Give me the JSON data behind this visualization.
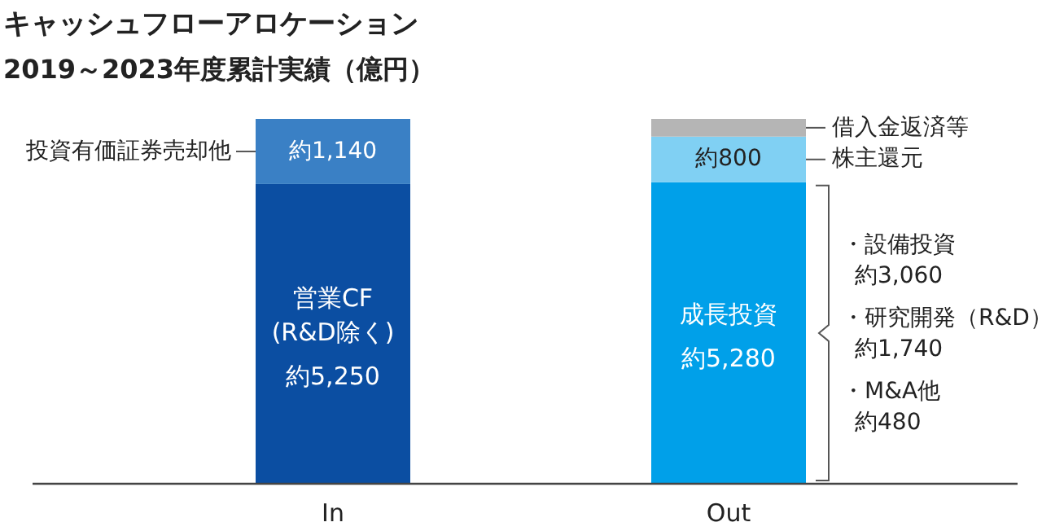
{
  "chart_data": {
    "type": "bar",
    "stacked": true,
    "title": "キャッシュフローアロケーション",
    "subtitle": "2019～2023年度累計実績（億円）",
    "categories": [
      "In",
      "Out"
    ],
    "series": [
      {
        "name": "営業CF\n(R&D除く)",
        "color": "#0b4ea2",
        "values": [
          5250,
          null
        ],
        "value_labels": [
          "約5,250",
          null
        ]
      },
      {
        "name": "成長投資",
        "color": "#00a0e9",
        "values": [
          null,
          5280
        ],
        "value_labels": [
          null,
          "約5,280"
        ]
      },
      {
        "name": "投資有価証券売却他",
        "color": "#3a80c5",
        "values": [
          1140,
          null
        ],
        "value_labels": [
          "約1,140",
          null
        ]
      },
      {
        "name": "株主還元",
        "color": "#80d0f3",
        "values": [
          null,
          800
        ],
        "value_labels": [
          null,
          "約800"
        ]
      },
      {
        "name": "借入金返済等",
        "color": "#b5b5b5",
        "values": [
          null,
          310
        ],
        "value_labels": [
          null,
          null
        ]
      }
    ],
    "annotations": [
      "・設備投資",
      "約3,060",
      "・研究開発（R&D）",
      "約1,740",
      "・M&A他",
      "約480"
    ]
  }
}
